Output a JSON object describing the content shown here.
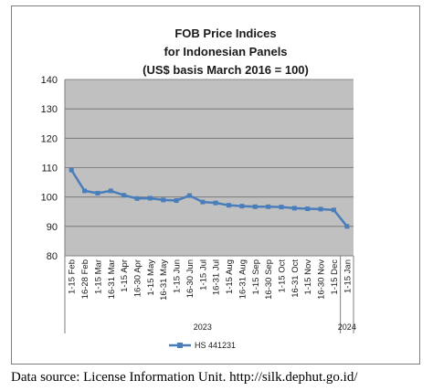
{
  "chart_data": {
    "type": "line",
    "title_lines": [
      "FOB Price Indices",
      "for Indonesian Panels",
      "(US$ basis March 2016 = 100)"
    ],
    "categories": [
      "1-15 Feb",
      "16-28 Feb",
      "1-15 Mar",
      "16-31 Mar",
      "1-15 Apr",
      "16-30 Apr",
      "1-15 May",
      "16-31 May",
      "1-15 Jun",
      "16-30 Jun",
      "1-15 Jul",
      "16-31 Jul",
      "1-15 Aug",
      "16-31 Aug",
      "1-15 Sep",
      "16-30 Sep",
      "1-15 Oct",
      "16-31 Oct",
      "1-15 Nov",
      "16-30 Nov",
      "1-15 Dec",
      "1-15 Jan"
    ],
    "year_groups": [
      {
        "label": "2023",
        "start": 0,
        "end": 20
      },
      {
        "label": "2024",
        "start": 21,
        "end": 21
      }
    ],
    "series": [
      {
        "name": "HS 441231",
        "color": "#4a7ebb",
        "values": [
          109.2,
          102.1,
          101.3,
          102.1,
          100.6,
          99.5,
          99.6,
          99.0,
          98.8,
          100.5,
          98.3,
          98.0,
          97.2,
          96.9,
          96.7,
          96.7,
          96.6,
          96.2,
          96.0,
          95.9,
          95.6,
          90.0
        ]
      }
    ],
    "yticks": [
      "80",
      "90",
      "100",
      "110",
      "120",
      "130",
      "140"
    ],
    "ylim": [
      80,
      140
    ],
    "grid": true,
    "plot_background": "#c0c0c0",
    "legend": "bottom"
  },
  "source_note": "Data source: License Information Unit. http://silk.dephut.go.id/"
}
